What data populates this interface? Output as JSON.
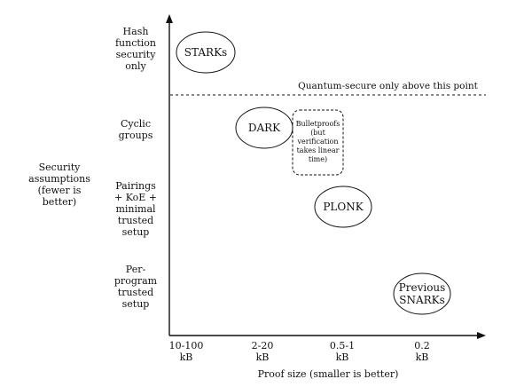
{
  "y_axis": {
    "title": "Security\nassumptions\n(fewer is\nbetter)",
    "levels": [
      "Hash\nfunction\nsecurity\nonly",
      "Cyclic\ngroups",
      "Pairings\n+ KoE +\nminimal\ntrusted\nsetup",
      "Per-\nprogram\ntrusted\nsetup"
    ]
  },
  "x_axis": {
    "title": "Proof size (smaller is better)",
    "levels": [
      "10-100\nkB",
      "2-20\nkB",
      "0.5-1\nkB",
      "0.2\nkB"
    ]
  },
  "boundary": {
    "label": "Quantum-secure only above this point"
  },
  "systems": [
    {
      "name": "STARKs"
    },
    {
      "name": "DARK"
    },
    {
      "name": "Bulletproofs\n(but\nverification\ntakes linear\ntime)"
    },
    {
      "name": "PLONK"
    },
    {
      "name": "Previous\nSNARKs"
    }
  ],
  "colors": {
    "ink": "#111111",
    "background": "#ffffff"
  }
}
